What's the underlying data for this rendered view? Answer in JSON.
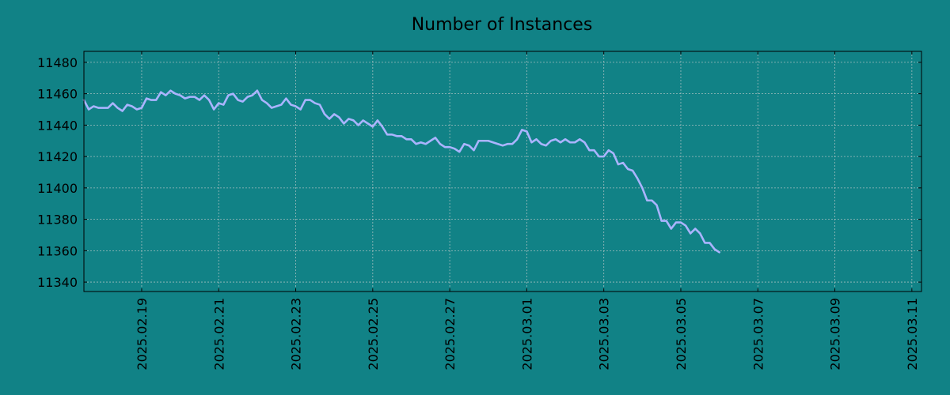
{
  "colors": {
    "background": "#118286",
    "line": "#aab4ff",
    "grid": "#d0d0d0",
    "text": "#000000"
  },
  "chart_data": {
    "type": "line",
    "title": "Number of Instances",
    "xlabel": "",
    "ylabel": "",
    "grid": true,
    "xlim": [
      "2025-02-17T12:00",
      "2025-03-11T06:00"
    ],
    "ylim": [
      11334,
      11487
    ],
    "y_ticks": [
      11340,
      11360,
      11380,
      11400,
      11420,
      11440,
      11460,
      11480
    ],
    "x_ticks": [
      "2025.02.19",
      "2025.02.21",
      "2025.02.23",
      "2025.02.25",
      "2025.02.27",
      "2025.03.01",
      "2025.03.03",
      "2025.03.05",
      "2025.03.07",
      "2025.03.09",
      "2025.03.11"
    ],
    "series": [
      {
        "color": "#aab4ff",
        "points": [
          [
            "2025-02-17T12:00",
            11456
          ],
          [
            "2025-02-17T15:00",
            11450
          ],
          [
            "2025-02-17T18:00",
            11452
          ],
          [
            "2025-02-17T21:00",
            11451
          ],
          [
            "2025-02-18T00:00",
            11451
          ],
          [
            "2025-02-18T03:00",
            11451
          ],
          [
            "2025-02-18T06:00",
            11454
          ],
          [
            "2025-02-18T09:00",
            11451
          ],
          [
            "2025-02-18T12:00",
            11449
          ],
          [
            "2025-02-18T15:00",
            11453
          ],
          [
            "2025-02-18T18:00",
            11452
          ],
          [
            "2025-02-18T21:00",
            11450
          ],
          [
            "2025-02-19T00:00",
            11451
          ],
          [
            "2025-02-19T03:00",
            11457
          ],
          [
            "2025-02-19T06:00",
            11456
          ],
          [
            "2025-02-19T09:00",
            11456
          ],
          [
            "2025-02-19T12:00",
            11461
          ],
          [
            "2025-02-19T15:00",
            11459
          ],
          [
            "2025-02-19T18:00",
            11462
          ],
          [
            "2025-02-19T21:00",
            11460
          ],
          [
            "2025-02-20T00:00",
            11459
          ],
          [
            "2025-02-20T03:00",
            11457
          ],
          [
            "2025-02-20T06:00",
            11458
          ],
          [
            "2025-02-20T09:00",
            11458
          ],
          [
            "2025-02-20T12:00",
            11456
          ],
          [
            "2025-02-20T15:00",
            11459
          ],
          [
            "2025-02-20T18:00",
            11456
          ],
          [
            "2025-02-20T21:00",
            11450
          ],
          [
            "2025-02-21T00:00",
            11454
          ],
          [
            "2025-02-21T03:00",
            11453
          ],
          [
            "2025-02-21T06:00",
            11459
          ],
          [
            "2025-02-21T09:00",
            11460
          ],
          [
            "2025-02-21T12:00",
            11456
          ],
          [
            "2025-02-21T15:00",
            11455
          ],
          [
            "2025-02-21T18:00",
            11458
          ],
          [
            "2025-02-21T21:00",
            11459
          ],
          [
            "2025-02-22T00:00",
            11462
          ],
          [
            "2025-02-22T03:00",
            11456
          ],
          [
            "2025-02-22T06:00",
            11454
          ],
          [
            "2025-02-22T09:00",
            11451
          ],
          [
            "2025-02-22T12:00",
            11452
          ],
          [
            "2025-02-22T15:00",
            11453
          ],
          [
            "2025-02-22T18:00",
            11457
          ],
          [
            "2025-02-22T21:00",
            11453
          ],
          [
            "2025-02-23T00:00",
            11452
          ],
          [
            "2025-02-23T03:00",
            11450
          ],
          [
            "2025-02-23T06:00",
            11456
          ],
          [
            "2025-02-23T09:00",
            11456
          ],
          [
            "2025-02-23T12:00",
            11454
          ],
          [
            "2025-02-23T15:00",
            11453
          ],
          [
            "2025-02-23T18:00",
            11447
          ],
          [
            "2025-02-23T21:00",
            11444
          ],
          [
            "2025-02-24T00:00",
            11447
          ],
          [
            "2025-02-24T03:00",
            11445
          ],
          [
            "2025-02-24T06:00",
            11441
          ],
          [
            "2025-02-24T09:00",
            11444
          ],
          [
            "2025-02-24T12:00",
            11443
          ],
          [
            "2025-02-24T15:00",
            11440
          ],
          [
            "2025-02-24T18:00",
            11443
          ],
          [
            "2025-02-24T21:00",
            11441
          ],
          [
            "2025-02-25T00:00",
            11439
          ],
          [
            "2025-02-25T03:00",
            11443
          ],
          [
            "2025-02-25T06:00",
            11439
          ],
          [
            "2025-02-25T09:00",
            11434
          ],
          [
            "2025-02-25T12:00",
            11434
          ],
          [
            "2025-02-25T15:00",
            11433
          ],
          [
            "2025-02-25T18:00",
            11433
          ],
          [
            "2025-02-25T21:00",
            11431
          ],
          [
            "2025-02-26T00:00",
            11431
          ],
          [
            "2025-02-26T03:00",
            11428
          ],
          [
            "2025-02-26T06:00",
            11429
          ],
          [
            "2025-02-26T09:00",
            11428
          ],
          [
            "2025-02-26T12:00",
            11430
          ],
          [
            "2025-02-26T15:00",
            11432
          ],
          [
            "2025-02-26T18:00",
            11428
          ],
          [
            "2025-02-26T21:00",
            11426
          ],
          [
            "2025-02-27T00:00",
            11426
          ],
          [
            "2025-02-27T03:00",
            11425
          ],
          [
            "2025-02-27T06:00",
            11423
          ],
          [
            "2025-02-27T09:00",
            11428
          ],
          [
            "2025-02-27T12:00",
            11427
          ],
          [
            "2025-02-27T15:00",
            11424
          ],
          [
            "2025-02-27T18:00",
            11430
          ],
          [
            "2025-02-27T21:00",
            11430
          ],
          [
            "2025-02-28T00:00",
            11430
          ],
          [
            "2025-02-28T03:00",
            11429
          ],
          [
            "2025-02-28T06:00",
            11428
          ],
          [
            "2025-02-28T09:00",
            11427
          ],
          [
            "2025-02-28T12:00",
            11428
          ],
          [
            "2025-02-28T15:00",
            11428
          ],
          [
            "2025-02-28T18:00",
            11431
          ],
          [
            "2025-02-28T21:00",
            11437
          ],
          [
            "2025-03-01T00:00",
            11436
          ],
          [
            "2025-03-01T03:00",
            11429
          ],
          [
            "2025-03-01T06:00",
            11431
          ],
          [
            "2025-03-01T09:00",
            11428
          ],
          [
            "2025-03-01T12:00",
            11427
          ],
          [
            "2025-03-01T15:00",
            11430
          ],
          [
            "2025-03-01T18:00",
            11431
          ],
          [
            "2025-03-01T21:00",
            11429
          ],
          [
            "2025-03-02T00:00",
            11431
          ],
          [
            "2025-03-02T03:00",
            11429
          ],
          [
            "2025-03-02T06:00",
            11429
          ],
          [
            "2025-03-02T09:00",
            11431
          ],
          [
            "2025-03-02T12:00",
            11429
          ],
          [
            "2025-03-02T15:00",
            11424
          ],
          [
            "2025-03-02T18:00",
            11424
          ],
          [
            "2025-03-02T21:00",
            11420
          ],
          [
            "2025-03-03T00:00",
            11420
          ],
          [
            "2025-03-03T03:00",
            11424
          ],
          [
            "2025-03-03T06:00",
            11422
          ],
          [
            "2025-03-03T09:00",
            11415
          ],
          [
            "2025-03-03T12:00",
            11416
          ],
          [
            "2025-03-03T15:00",
            11412
          ],
          [
            "2025-03-03T18:00",
            11411
          ],
          [
            "2025-03-03T21:00",
            11406
          ],
          [
            "2025-03-04T00:00",
            11400
          ],
          [
            "2025-03-04T03:00",
            11392
          ],
          [
            "2025-03-04T06:00",
            11392
          ],
          [
            "2025-03-04T09:00",
            11389
          ],
          [
            "2025-03-04T12:00",
            11379
          ],
          [
            "2025-03-04T15:00",
            11379
          ],
          [
            "2025-03-04T18:00",
            11374
          ],
          [
            "2025-03-04T21:00",
            11378
          ],
          [
            "2025-03-05T00:00",
            11378
          ],
          [
            "2025-03-05T03:00",
            11376
          ],
          [
            "2025-03-05T06:00",
            11371
          ],
          [
            "2025-03-05T09:00",
            11374
          ],
          [
            "2025-03-05T12:00",
            11371
          ],
          [
            "2025-03-05T15:00",
            11365
          ],
          [
            "2025-03-05T18:00",
            11365
          ],
          [
            "2025-03-05T21:00",
            11361
          ],
          [
            "2025-03-06T00:00",
            11359
          ]
        ]
      }
    ]
  }
}
